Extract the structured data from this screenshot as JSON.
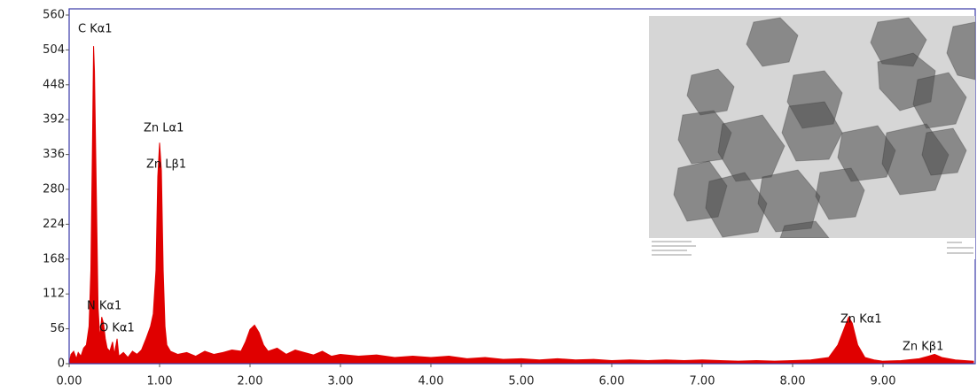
{
  "chart_data": {
    "type": "area",
    "color": "#e00000",
    "x": [
      0.0,
      0.02,
      0.05,
      0.08,
      0.1,
      0.13,
      0.16,
      0.19,
      0.22,
      0.24,
      0.26,
      0.27,
      0.28,
      0.3,
      0.32,
      0.34,
      0.36,
      0.38,
      0.4,
      0.42,
      0.45,
      0.48,
      0.5,
      0.53,
      0.55,
      0.6,
      0.65,
      0.7,
      0.75,
      0.8,
      0.85,
      0.9,
      0.93,
      0.96,
      0.98,
      1.0,
      1.02,
      1.04,
      1.06,
      1.08,
      1.12,
      1.2,
      1.3,
      1.4,
      1.5,
      1.6,
      1.7,
      1.8,
      1.9,
      1.95,
      2.0,
      2.05,
      2.1,
      2.15,
      2.2,
      2.3,
      2.4,
      2.5,
      2.6,
      2.7,
      2.8,
      2.9,
      3.0,
      3.2,
      3.4,
      3.6,
      3.8,
      4.0,
      4.2,
      4.4,
      4.6,
      4.8,
      5.0,
      5.2,
      5.4,
      5.6,
      5.8,
      6.0,
      6.2,
      6.4,
      6.6,
      6.8,
      7.0,
      7.2,
      7.4,
      7.6,
      7.8,
      8.0,
      8.2,
      8.4,
      8.5,
      8.58,
      8.62,
      8.66,
      8.72,
      8.8,
      8.9,
      9.0,
      9.2,
      9.4,
      9.5,
      9.57,
      9.65,
      9.8,
      10.0
    ],
    "values": [
      0,
      15,
      20,
      8,
      18,
      12,
      25,
      30,
      60,
      150,
      380,
      510,
      470,
      280,
      90,
      40,
      75,
      65,
      40,
      25,
      20,
      35,
      15,
      40,
      12,
      18,
      10,
      20,
      15,
      22,
      40,
      60,
      80,
      150,
      300,
      355,
      310,
      150,
      60,
      30,
      20,
      15,
      18,
      12,
      20,
      15,
      18,
      22,
      20,
      35,
      55,
      62,
      50,
      30,
      20,
      25,
      15,
      22,
      18,
      14,
      20,
      12,
      15,
      12,
      14,
      10,
      12,
      10,
      12,
      8,
      10,
      7,
      8,
      6,
      8,
      6,
      7,
      5,
      6,
      5,
      6,
      5,
      6,
      5,
      4,
      5,
      4,
      5,
      6,
      10,
      30,
      60,
      75,
      65,
      30,
      10,
      6,
      4,
      5,
      8,
      12,
      15,
      10,
      6,
      4
    ],
    "xlim": [
      0,
      10
    ],
    "ylim": [
      0,
      560
    ],
    "xticks": [
      {
        "value": 0,
        "label": "0.00"
      },
      {
        "value": 1,
        "label": "1.00"
      },
      {
        "value": 2,
        "label": "2.00"
      },
      {
        "value": 3,
        "label": "3.00"
      },
      {
        "value": 4,
        "label": "4.00"
      },
      {
        "value": 5,
        "label": "5.00"
      },
      {
        "value": 6,
        "label": "6.00"
      },
      {
        "value": 7,
        "label": "7.00"
      },
      {
        "value": 8,
        "label": "8.00"
      },
      {
        "value": 9,
        "label": "9.00"
      }
    ],
    "yticks": [
      0,
      56,
      112,
      168,
      224,
      280,
      336,
      392,
      448,
      504,
      560
    ],
    "annotations": [
      "C  Kα1",
      "Zn Lα1",
      "Zn Lβ1",
      "N  Kα1",
      "O  Kα1",
      "Zn Kα1",
      "Zn Kβ1"
    ]
  }
}
